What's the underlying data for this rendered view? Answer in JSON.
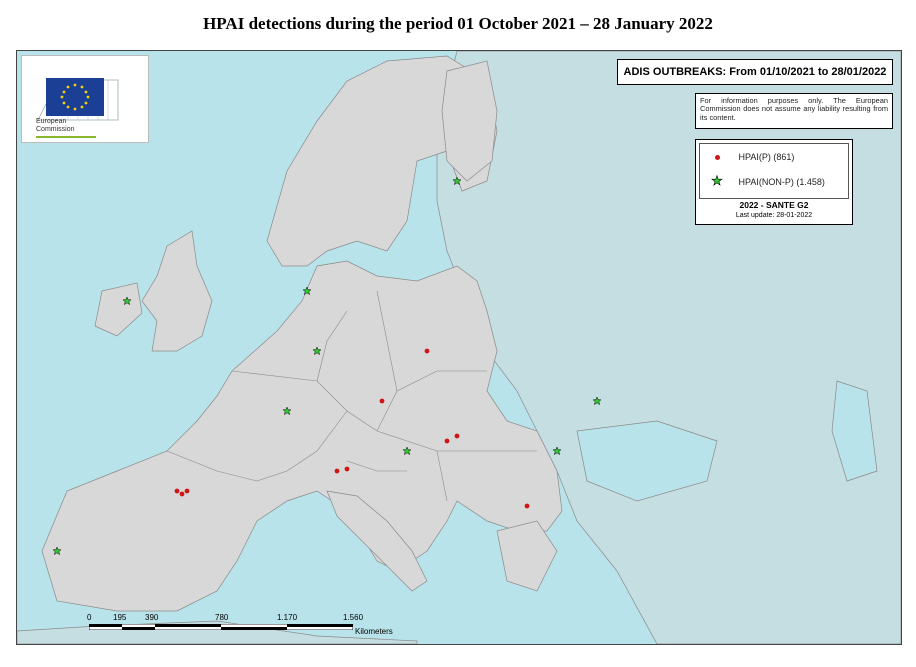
{
  "title": "HPAI detections during the period  01 October 2021 – 28  January 2022",
  "adis_title": "ADIS OUTBREAKS: From 01/10/2021 to 28/01/2022",
  "disclaimer": "For information purposes only. The European Commission does not assume any liability resulting from its content.",
  "legend": {
    "items": [
      {
        "label": "HPAI(P) (861)",
        "symbol": "red-dot",
        "color": "#d01515"
      },
      {
        "label": "HPAI(NON-P) (1.458)",
        "symbol": "green-star",
        "color": "#2ecc2e"
      }
    ],
    "source": "2022 - SANTE G2",
    "last_update": "Last update: 28-01-2022"
  },
  "logo": {
    "line1": "European",
    "line2": "Commission"
  },
  "scale": {
    "ticks": [
      "0",
      "195",
      "390",
      "780",
      "1.170",
      "1.560"
    ],
    "units": "Kilometers"
  },
  "colors": {
    "sea": "#b9e3ea",
    "eu_land": "#d8d8d8",
    "non_eu_land": "#c4dee2",
    "border": "#8a8a8a"
  }
}
